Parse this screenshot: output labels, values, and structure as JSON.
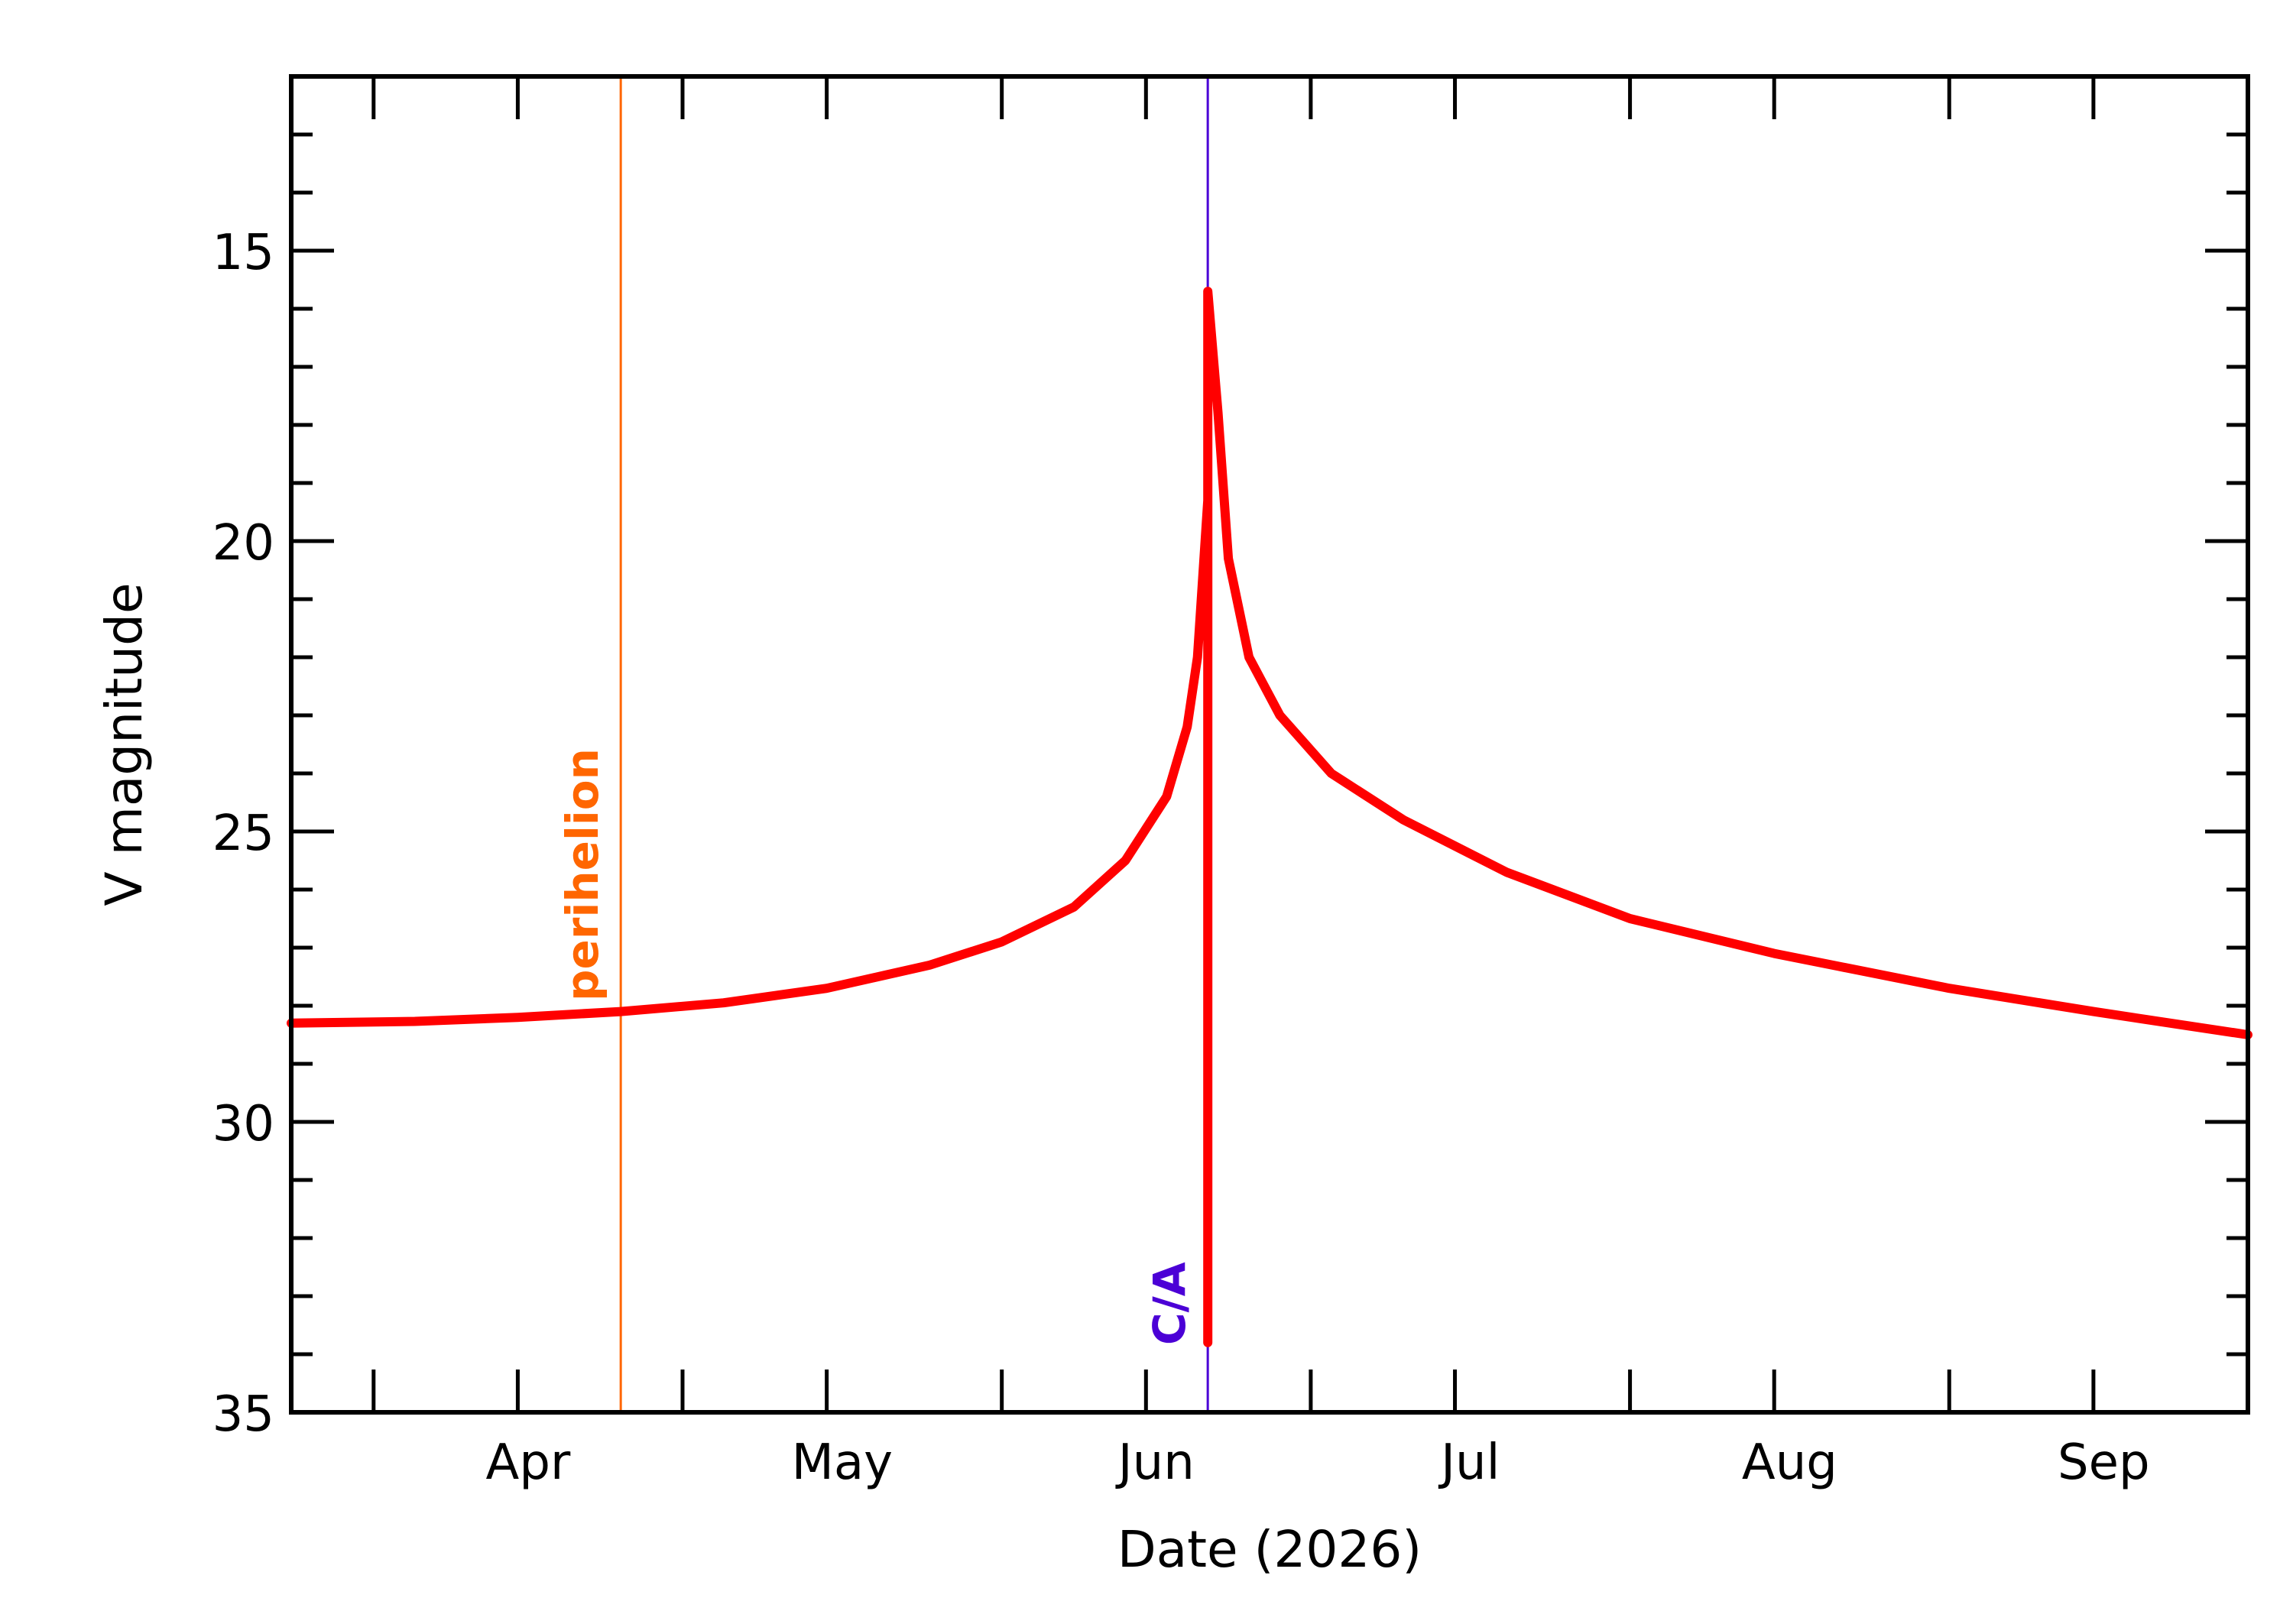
{
  "chart_data": {
    "type": "line",
    "title": "",
    "xlabel": "Date (2026)",
    "ylabel": "V magnitude",
    "x_axis": {
      "type": "date",
      "min": "2026-03-24",
      "max": "2026-09-30",
      "tick_labels": [
        {
          "date": "2026-04-01",
          "label": "Apr"
        },
        {
          "date": "2026-05-01",
          "label": "May"
        },
        {
          "date": "2026-06-01",
          "label": "Jun"
        },
        {
          "date": "2026-07-01",
          "label": "Jul"
        },
        {
          "date": "2026-08-01",
          "label": "Aug"
        },
        {
          "date": "2026-09-01",
          "label": "Sep"
        }
      ],
      "minor_tick_dates": [
        "2026-04-15",
        "2026-05-15",
        "2026-06-15",
        "2026-07-15",
        "2026-08-15",
        "2026-09-15"
      ]
    },
    "y_axis": {
      "min": 12,
      "max": 35,
      "inverted": true,
      "major_ticks": [
        15,
        20,
        25,
        30,
        35
      ],
      "minor_step": 1
    },
    "grid": false,
    "series": [
      {
        "color": "#ff0000",
        "points": [
          {
            "x": "2026-03-24",
            "y": 28.3
          },
          {
            "x": "2026-04-05",
            "y": 28.27
          },
          {
            "x": "2026-04-15",
            "y": 28.2
          },
          {
            "x": "2026-04-25",
            "y": 28.1
          },
          {
            "x": "2026-05-05",
            "y": 27.95
          },
          {
            "x": "2026-05-15",
            "y": 27.7
          },
          {
            "x": "2026-05-25",
            "y": 27.3
          },
          {
            "x": "2026-06-01",
            "y": 26.9
          },
          {
            "x": "2026-06-08",
            "y": 26.3
          },
          {
            "x": "2026-06-13",
            "y": 25.5
          },
          {
            "x": "2026-06-17",
            "y": 24.4
          },
          {
            "x": "2026-06-19",
            "y": 23.2
          },
          {
            "x": "2026-06-20",
            "y": 22.0
          },
          {
            "x": "2026-06-21",
            "y": 19.3
          },
          {
            "x": "2026-06-21",
            "y": 33.8
          },
          {
            "x": "2026-06-21",
            "y": 15.7
          },
          {
            "x": "2026-06-22",
            "y": 17.8
          },
          {
            "x": "2026-06-23",
            "y": 20.3
          },
          {
            "x": "2026-06-25",
            "y": 22.0
          },
          {
            "x": "2026-06-28",
            "y": 23.0
          },
          {
            "x": "2026-07-03",
            "y": 24.0
          },
          {
            "x": "2026-07-10",
            "y": 24.8
          },
          {
            "x": "2026-07-20",
            "y": 25.7
          },
          {
            "x": "2026-08-01",
            "y": 26.5
          },
          {
            "x": "2026-08-15",
            "y": 27.1
          },
          {
            "x": "2026-09-01",
            "y": 27.7
          },
          {
            "x": "2026-09-15",
            "y": 28.1
          },
          {
            "x": "2026-09-30",
            "y": 28.5
          }
        ]
      }
    ],
    "annotations": [
      {
        "label": "perihelion",
        "date": "2026-04-25",
        "color": "#ff6600"
      },
      {
        "label": "C/A",
        "date": "2026-06-21",
        "color": "#4b00d6"
      }
    ]
  }
}
